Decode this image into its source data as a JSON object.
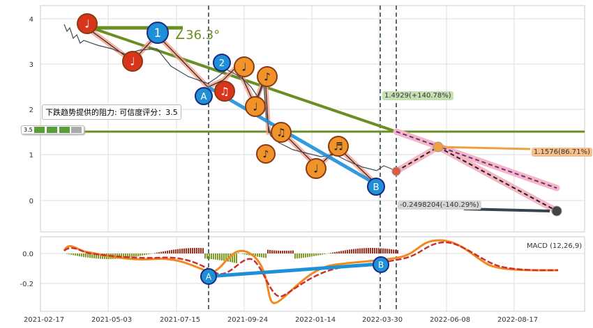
{
  "chart_data": [
    {
      "type": "line",
      "title": "",
      "yticks": [
        "4",
        "3",
        "2",
        "1",
        "0"
      ],
      "ylim": [
        -0.7,
        4.3
      ],
      "xticks": [
        "2021-02-17",
        "2021-05-03",
        "2021-07-15",
        "2021-09-24",
        "2022-01-14",
        "2022-03-30",
        "2022-06-08",
        "2022-08-17"
      ],
      "annotations": {
        "angle": "∠36.3°",
        "resistance_note": "下跌趋势提供的阻力: 可信度评分：3.5",
        "rating": "3.5",
        "target_high": "1.4929(+140.78%)",
        "target_mid": "1.1576(86.71%)",
        "target_low": "-0.2498204(-140.29%)",
        "marker_1": "1",
        "marker_A": "A",
        "marker_B": "B",
        "marker_2": "2",
        "notes": [
          "♩",
          "♩",
          "♩",
          "♫",
          "♩",
          "♪",
          "♩",
          "♫",
          "♪",
          "♬",
          "♩"
        ]
      },
      "horizontal_level": 1.5,
      "colors": {
        "trend": "#6b8e23",
        "blue": "#1e90d8",
        "orange": "#f0932b",
        "red": "#d9341c",
        "pink": "#f4b6c2"
      }
    },
    {
      "type": "line",
      "title": "MACD (12,26,9)",
      "yticks": [
        "0.0",
        "-0.2"
      ],
      "ylim": [
        -0.38,
        0.1
      ],
      "marker_A": "A",
      "marker_B": "B"
    }
  ]
}
